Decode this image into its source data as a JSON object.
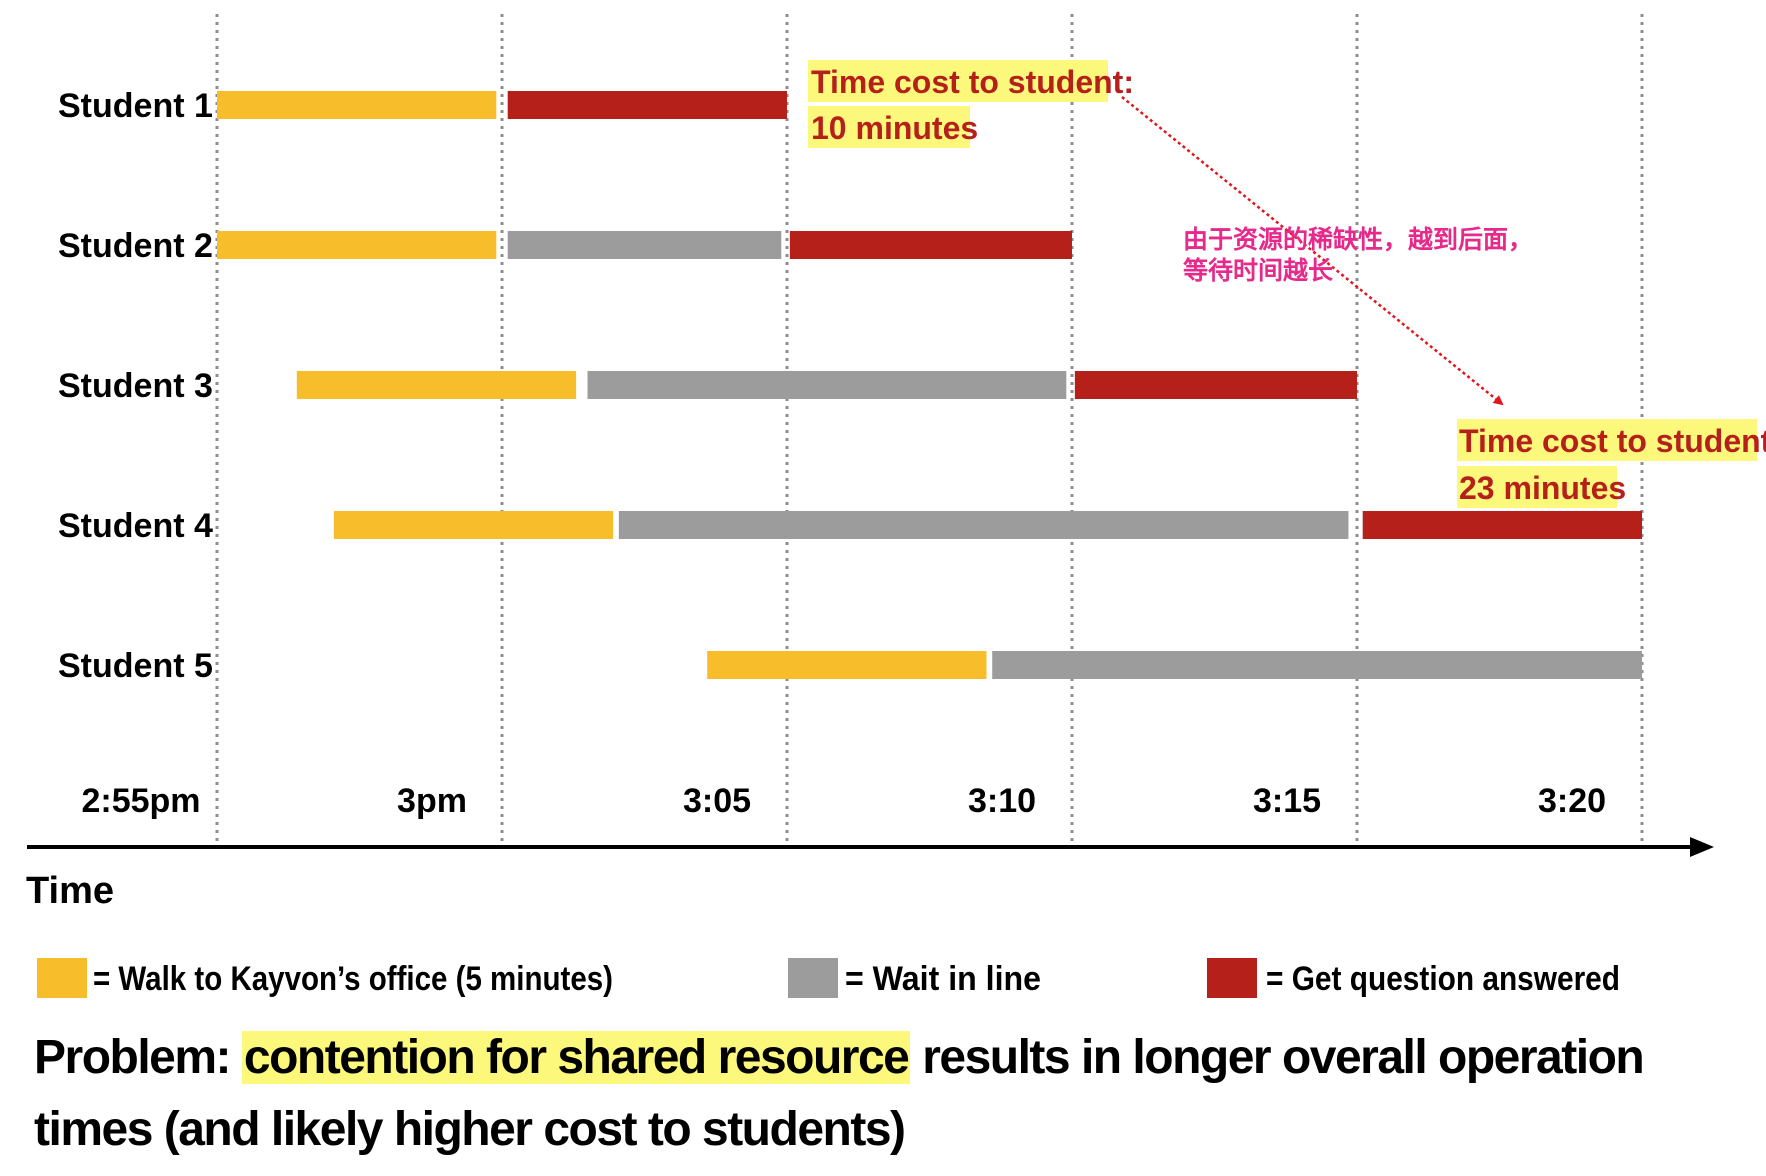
{
  "chart_data": {
    "type": "gantt",
    "x_axis_label": "Time",
    "x_range_minutes": [
      0,
      25.5
    ],
    "ticks": [
      {
        "minute": 0,
        "label": "2:55pm"
      },
      {
        "minute": 5,
        "label": "3pm"
      },
      {
        "minute": 10,
        "label": "3:05"
      },
      {
        "minute": 15,
        "label": "3:10"
      },
      {
        "minute": 20,
        "label": "3:15"
      },
      {
        "minute": 25,
        "label": "3:20"
      }
    ],
    "rows": [
      {
        "label": "Student 1",
        "segments": [
          {
            "kind": "walk",
            "start": 0,
            "end": 4.9
          },
          {
            "kind": "answer",
            "start": 5.1,
            "end": 10
          }
        ]
      },
      {
        "label": "Student 2",
        "segments": [
          {
            "kind": "walk",
            "start": 0,
            "end": 4.9
          },
          {
            "kind": "wait",
            "start": 5.1,
            "end": 9.9
          },
          {
            "kind": "answer",
            "start": 10.05,
            "end": 15
          }
        ]
      },
      {
        "label": "Student 3",
        "segments": [
          {
            "kind": "walk",
            "start": 1.4,
            "end": 6.3
          },
          {
            "kind": "wait",
            "start": 6.5,
            "end": 14.9
          },
          {
            "kind": "answer",
            "start": 15.05,
            "end": 20
          }
        ]
      },
      {
        "label": "Student 4",
        "segments": [
          {
            "kind": "walk",
            "start": 2.05,
            "end": 6.95
          },
          {
            "kind": "wait",
            "start": 7.05,
            "end": 19.85
          },
          {
            "kind": "answer",
            "start": 20.1,
            "end": 25
          }
        ]
      },
      {
        "label": "Student 5",
        "segments": [
          {
            "kind": "walk",
            "start": 8.6,
            "end": 13.5
          },
          {
            "kind": "wait",
            "start": 13.6,
            "end": 25
          }
        ]
      }
    ],
    "legend": [
      {
        "kind": "walk",
        "label": "= Walk to Kayvon’s office (5 minutes)"
      },
      {
        "kind": "wait",
        "label": "= Wait in line"
      },
      {
        "kind": "answer",
        "label": "= Get question answered"
      }
    ],
    "annotations": {
      "cost_first": {
        "line1": "Time cost to student:",
        "line2": "10 minutes"
      },
      "cost_last": {
        "line1": "Time cost to student:",
        "line2": "23 minutes"
      },
      "chinese_note": {
        "line1": "由于资源的稀缺性，越到后面，",
        "line2": "等待时间越长"
      }
    }
  },
  "caption": {
    "prefix": "Problem: ",
    "highlight": "contention for shared resource",
    "rest": " results in longer overall operation",
    "line2": "times (and likely higher cost to students)"
  },
  "colors": {
    "walk": "#f8bd2a",
    "wait": "#9c9c9c",
    "answer": "#b5201b",
    "highlight": "#fbf87b",
    "annotation_text": "#b5201b",
    "note_text": "#e6298a",
    "arrow": "#e3141b"
  }
}
